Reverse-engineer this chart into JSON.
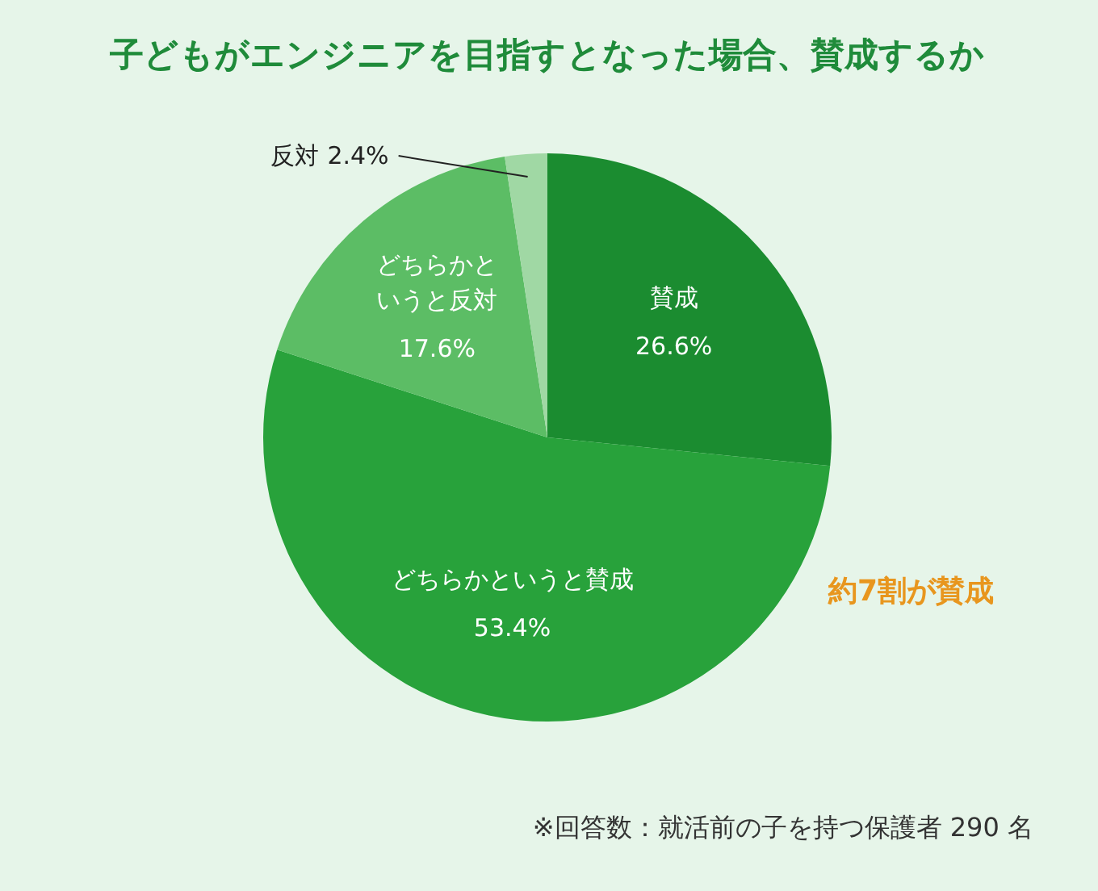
{
  "chart_data": {
    "type": "pie",
    "title": "子どもがエンジニアを目指すとなった場合、賛成するか",
    "categories": [
      "賛成",
      "どちらかというと賛成",
      "どちらかというと反対",
      "反対"
    ],
    "values": [
      26.6,
      53.4,
      17.6,
      2.4
    ],
    "colors": [
      "#1b8c30",
      "#28a23b",
      "#5cbd65",
      "#a0d8a4"
    ],
    "value_labels": [
      "26.6%",
      "53.4%",
      "17.6%",
      "2.4%"
    ],
    "annotations": [
      "約7割が賛成",
      "※回答数：就活前の子を持つ保護者 290 名"
    ]
  }
}
